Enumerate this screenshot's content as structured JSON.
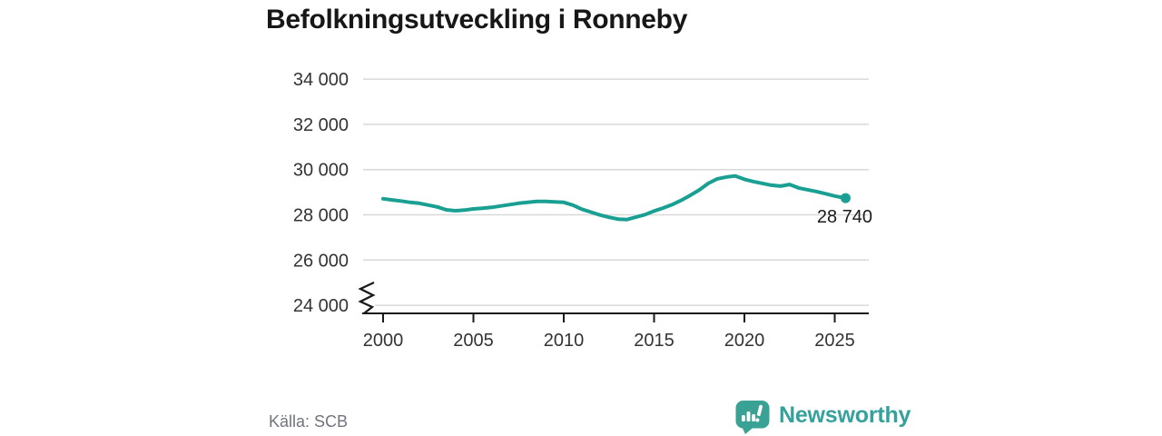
{
  "title": "Befolkningsutveckling i Ronneby",
  "source": "Källa: SCB",
  "logo": {
    "text": "Newsworthy",
    "icon": "newsworthy-speech-bubble-bar-chart-icon",
    "icon_color": "#3aa294",
    "text_color": "#34a19c"
  },
  "colors": {
    "background": "#ffffff",
    "title": "#171717",
    "line": "#1aa092",
    "marker": "#1aa092",
    "grid": "#d9d9d9",
    "axis": "#1a1a1a",
    "tick_label": "#333333",
    "value_label": "#1a1a1a",
    "source_text": "#70747e"
  },
  "chart_data": {
    "type": "line",
    "title": "Befolkningsutveckling i Ronneby",
    "xlabel": "",
    "ylabel": "",
    "grid": "horizontal",
    "legend": "none",
    "axis_break_at_bottom": true,
    "xlim": [
      1998.9,
      2026.9
    ],
    "ylim": [
      24000,
      34400
    ],
    "x_ticks": [
      2000,
      2005,
      2010,
      2015,
      2020,
      2025
    ],
    "x_tick_labels": [
      "2000",
      "2005",
      "2010",
      "2015",
      "2020",
      "2025"
    ],
    "y_ticks": [
      24000,
      26000,
      28000,
      30000,
      32000,
      34000
    ],
    "y_tick_labels": [
      "24 000",
      "26 000",
      "28 000",
      "30 000",
      "32 000",
      "34 000"
    ],
    "series": [
      {
        "name": "Befolkning i Ronneby",
        "x": [
          2000,
          2000.5,
          2001,
          2001.5,
          2002,
          2002.5,
          2003,
          2003.5,
          2004,
          2004.5,
          2005,
          2005.5,
          2006,
          2006.5,
          2007,
          2007.5,
          2008,
          2008.5,
          2009,
          2009.5,
          2010,
          2010.5,
          2011,
          2011.5,
          2012,
          2012.5,
          2013,
          2013.5,
          2014,
          2014.5,
          2015,
          2015.5,
          2016,
          2016.5,
          2017,
          2017.5,
          2018,
          2018.5,
          2019,
          2019.5,
          2020,
          2020.5,
          2021,
          2021.5,
          2022,
          2022.5,
          2023,
          2023.5,
          2024,
          2024.5,
          2025,
          2025.6
        ],
        "y": [
          28710,
          28660,
          28610,
          28550,
          28510,
          28430,
          28350,
          28220,
          28180,
          28210,
          28260,
          28290,
          28330,
          28390,
          28450,
          28510,
          28550,
          28590,
          28590,
          28570,
          28550,
          28430,
          28250,
          28120,
          27990,
          27890,
          27810,
          27790,
          27900,
          28010,
          28170,
          28300,
          28450,
          28640,
          28860,
          29100,
          29390,
          29590,
          29670,
          29720,
          29570,
          29470,
          29390,
          29310,
          29270,
          29340,
          29190,
          29110,
          29030,
          28930,
          28830,
          28740
        ]
      }
    ],
    "latest_point": {
      "x": 2025.6,
      "value": 28740,
      "label": "28 740"
    }
  }
}
